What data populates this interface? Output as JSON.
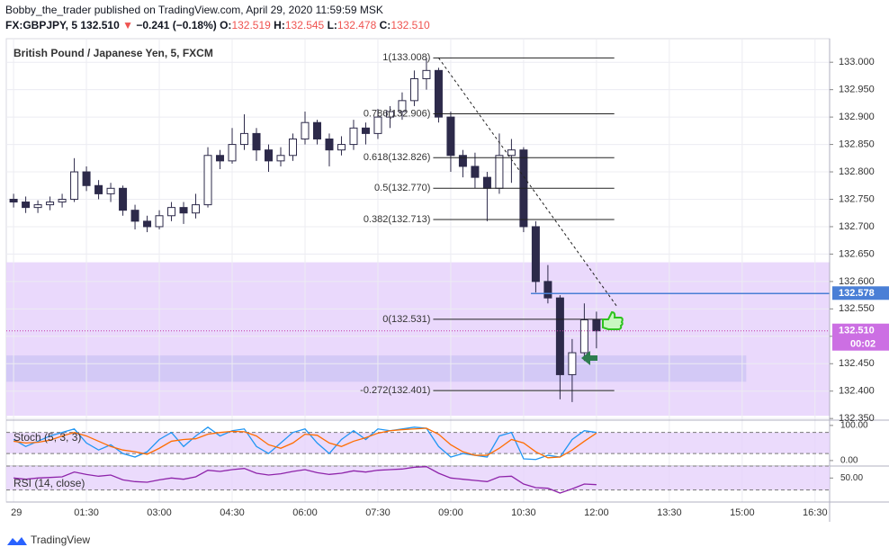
{
  "header": {
    "author_line": "Bobby_the_trader published on TradingView.com, April 29, 2020 11:59:59 MSK",
    "symbol": "FX:GBPJPY, 5",
    "last": "132.510",
    "change": "−0.241 (−0.18%)",
    "ohlc": [
      {
        "key": "O:",
        "value": "132.519"
      },
      {
        "key": "H:",
        "value": "132.545"
      },
      {
        "key": "L:",
        "value": "132.478"
      },
      {
        "key": "C:",
        "value": "132.510"
      }
    ]
  },
  "chart_data": {
    "type": "candlestick",
    "title": "British Pound / Japanese Yen, 5, FXCM",
    "x": [
      0,
      15,
      30,
      45,
      60,
      75,
      90,
      105,
      120,
      135,
      150,
      165,
      180,
      195,
      210,
      225,
      240,
      255,
      270,
      285,
      300,
      315,
      330,
      345,
      360,
      375,
      390,
      405,
      420,
      435,
      450,
      465,
      480,
      495,
      510,
      525,
      540,
      555,
      570,
      585,
      600,
      615,
      630,
      645,
      660,
      675,
      690,
      705,
      720
    ],
    "open": [
      132.75,
      132.745,
      132.735,
      132.74,
      132.745,
      132.75,
      132.8,
      132.775,
      132.76,
      132.77,
      132.73,
      132.71,
      132.7,
      132.72,
      132.735,
      132.725,
      132.74,
      132.83,
      132.82,
      132.85,
      132.87,
      132.84,
      132.82,
      132.83,
      132.86,
      132.89,
      132.86,
      132.84,
      132.85,
      132.88,
      132.87,
      132.9,
      132.91,
      132.93,
      132.97,
      132.985,
      132.9,
      132.83,
      132.81,
      132.79,
      132.77,
      132.83,
      132.84,
      132.7,
      132.6,
      132.57,
      132.43,
      132.47,
      132.53
    ],
    "high": [
      132.76,
      132.755,
      132.748,
      132.755,
      132.76,
      132.825,
      132.81,
      132.785,
      132.78,
      132.775,
      132.74,
      132.72,
      132.73,
      132.745,
      132.745,
      132.76,
      132.845,
      132.84,
      132.88,
      132.905,
      132.88,
      132.85,
      132.845,
      132.87,
      132.91,
      132.895,
      132.87,
      132.865,
      132.895,
      132.89,
      132.915,
      132.92,
      132.945,
      132.985,
      133.008,
      132.99,
      132.91,
      132.84,
      132.835,
      132.8,
      132.87,
      132.86,
      132.845,
      132.71,
      132.63,
      132.575,
      132.495,
      132.56,
      132.545
    ],
    "low": [
      132.735,
      132.725,
      132.725,
      132.73,
      132.735,
      132.745,
      132.765,
      132.75,
      132.745,
      132.72,
      132.695,
      132.69,
      132.695,
      132.71,
      132.705,
      132.715,
      132.735,
      132.805,
      132.815,
      132.84,
      132.82,
      132.8,
      132.81,
      132.82,
      132.85,
      132.85,
      132.81,
      132.83,
      132.84,
      132.85,
      132.86,
      132.88,
      132.895,
      132.92,
      132.95,
      132.89,
      132.8,
      132.79,
      132.77,
      132.71,
      132.76,
      132.78,
      132.69,
      132.58,
      132.56,
      132.385,
      132.38,
      132.455,
      132.478
    ],
    "close": [
      132.745,
      132.735,
      132.74,
      132.745,
      132.75,
      132.8,
      132.775,
      132.76,
      132.77,
      132.73,
      132.71,
      132.7,
      132.72,
      132.735,
      132.725,
      132.74,
      132.83,
      132.82,
      132.85,
      132.87,
      132.84,
      132.82,
      132.83,
      132.86,
      132.89,
      132.86,
      132.84,
      132.85,
      132.88,
      132.87,
      132.9,
      132.91,
      132.93,
      132.97,
      132.985,
      132.9,
      132.83,
      132.81,
      132.79,
      132.77,
      132.83,
      132.84,
      132.7,
      132.6,
      132.57,
      132.43,
      132.47,
      132.53,
      132.51
    ],
    "up_color": "#ffffff",
    "down_color": "#2d2a4a",
    "wick_color": "#2d2a4a",
    "xlim": [
      -9,
      1008
    ],
    "xticks": [
      {
        "value": 0,
        "label": "29"
      },
      {
        "value": 90,
        "label": "01:30"
      },
      {
        "value": 180,
        "label": "03:00"
      },
      {
        "value": 270,
        "label": "04:30"
      },
      {
        "value": 360,
        "label": "06:00"
      },
      {
        "value": 450,
        "label": "07:30"
      },
      {
        "value": 540,
        "label": "09:00"
      },
      {
        "value": 630,
        "label": "10:30"
      },
      {
        "value": 720,
        "label": "12:00"
      },
      {
        "value": 810,
        "label": "13:30"
      },
      {
        "value": 900,
        "label": "15:00"
      },
      {
        "value": 990,
        "label": "16:30"
      }
    ],
    "ylim": [
      132.347,
      133.043
    ],
    "yticks": [
      {
        "value": 132.35,
        "label": "132.350"
      },
      {
        "value": 132.4,
        "label": "132.400"
      },
      {
        "value": 132.45,
        "label": "132.450"
      },
      {
        "value": 132.5,
        "label": "132.500"
      },
      {
        "value": 132.55,
        "label": "132.550"
      },
      {
        "value": 132.6,
        "label": "132.600"
      },
      {
        "value": 132.65,
        "label": "132.650"
      },
      {
        "value": 132.7,
        "label": "132.700"
      },
      {
        "value": 132.75,
        "label": "132.750"
      },
      {
        "value": 132.8,
        "label": "132.800"
      },
      {
        "value": 132.85,
        "label": "132.850"
      },
      {
        "value": 132.9,
        "label": "132.900"
      },
      {
        "value": 132.95,
        "label": "132.950"
      },
      {
        "value": 133.0,
        "label": "133.000"
      }
    ],
    "grid": true,
    "zones": [
      {
        "from": 132.355,
        "to": 132.635,
        "end": 1008,
        "color": "#e6d2fb"
      },
      {
        "from": 132.417,
        "to": 132.465,
        "end": 905,
        "color": "#cfc6f5"
      }
    ],
    "fib": {
      "start": 525,
      "end": 742,
      "levels": [
        {
          "value": 133.008,
          "label": "1(133.008)"
        },
        {
          "value": 132.906,
          "label": "0.786(132.906)"
        },
        {
          "value": 132.826,
          "label": "0.618(132.826)"
        },
        {
          "value": 132.77,
          "label": "0.5(132.770)"
        },
        {
          "value": 132.713,
          "label": "0.382(132.713)"
        },
        {
          "value": 132.531,
          "label": "0(132.531)"
        },
        {
          "value": 132.401,
          "label": "-0.272(132.401)"
        }
      ]
    },
    "trendline": {
      "x": [
        525,
        745
      ],
      "y": [
        133.008,
        132.555
      ]
    },
    "price_lines": [
      {
        "value": 132.578,
        "label": "132.578",
        "from": 639,
        "color": "#4a7fd6",
        "dash": "none"
      },
      {
        "value": 132.51,
        "label": "132.510",
        "sub": "00:02",
        "from": -9,
        "color": "#c23ba5",
        "dash": "1 2",
        "box": "#cc6fe3"
      }
    ],
    "indicators": [
      {
        "name": "Stoch (5, 3, 3)",
        "ylim": [
          -13,
          115
        ],
        "yticks": [
          {
            "value": 100,
            "label": "100.00"
          },
          {
            "value": 0,
            "label": "0.00"
          }
        ],
        "bands": [
          20,
          80
        ],
        "series": [
          {
            "color": "#2196f3",
            "values": [
              60,
              40,
              55,
              70,
              80,
              90,
              50,
              30,
              45,
              20,
              10,
              25,
              60,
              80,
              40,
              70,
              95,
              70,
              85,
              90,
              40,
              20,
              50,
              80,
              90,
              50,
              20,
              60,
              85,
              60,
              90,
              85,
              90,
              95,
              92,
              40,
              10,
              20,
              15,
              10,
              70,
              80,
              5,
              3,
              15,
              10,
              60,
              85,
              80
            ]
          },
          {
            "color": "#ff6d00",
            "values": [
              55,
              50,
              52,
              58,
              70,
              80,
              70,
              55,
              40,
              30,
              25,
              18,
              35,
              55,
              60,
              62,
              75,
              80,
              83,
              82,
              70,
              45,
              35,
              50,
              75,
              72,
              50,
              40,
              55,
              65,
              78,
              85,
              88,
              90,
              92,
              75,
              45,
              25,
              15,
              15,
              35,
              60,
              50,
              25,
              8,
              10,
              30,
              55,
              78
            ]
          }
        ]
      },
      {
        "name": "RSI (14, close)",
        "ylim": [
          10,
          70
        ],
        "yticks": [
          {
            "value": 50,
            "label": "50.00"
          }
        ],
        "bands": [
          30,
          70
        ],
        "series": [
          {
            "color": "#8e24aa",
            "values": [
              50,
              48,
              50,
              51,
              52,
              60,
              56,
              53,
              55,
              47,
              44,
              43,
              47,
              50,
              48,
              52,
              63,
              61,
              64,
              66,
              58,
              55,
              57,
              61,
              64,
              59,
              56,
              58,
              62,
              60,
              63,
              64,
              65,
              68,
              69,
              58,
              50,
              48,
              46,
              44,
              52,
              53,
              40,
              34,
              33,
              25,
              32,
              40,
              39
            ]
          }
        ]
      }
    ]
  },
  "footer": {
    "brand": "TradingView"
  }
}
